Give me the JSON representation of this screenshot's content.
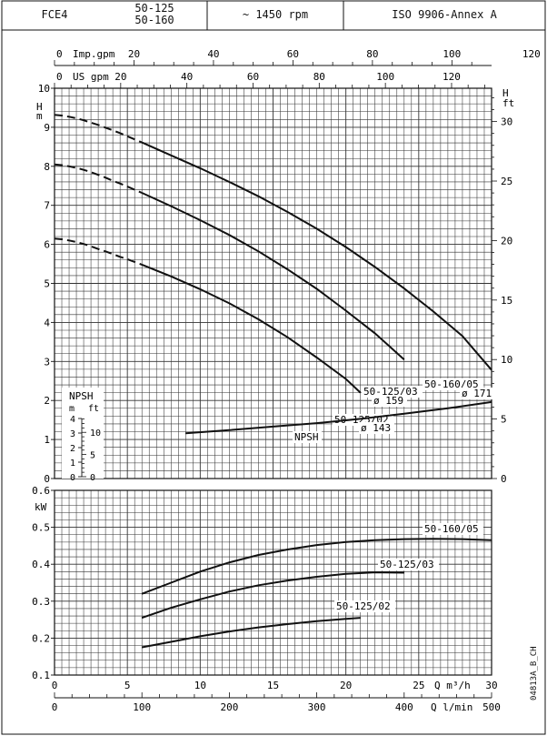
{
  "header": {
    "model": "FCE4",
    "variants": [
      "50-125",
      "50-160"
    ],
    "speed": "~ 1450 rpm",
    "standard": "ISO 9906-Annex A"
  },
  "doc_ref": "04813A_B_CH",
  "chart_data": [
    {
      "type": "line",
      "name": "head",
      "ylabel": "H m",
      "ylabel_right": "H ft",
      "ylim": [
        0,
        10
      ],
      "ylim_ft": [
        0,
        32.8
      ],
      "yticks": [
        0,
        1,
        2,
        3,
        4,
        5,
        6,
        7,
        8,
        9,
        10
      ],
      "yticks_ft": [
        0,
        5,
        10,
        15,
        20,
        25,
        30
      ],
      "xlim_m3h": [
        0,
        30
      ],
      "top_axes": [
        {
          "label": "Imp.gpm",
          "ticks": [
            0,
            20,
            40,
            60,
            80,
            100,
            120
          ],
          "factor": 3.666
        },
        {
          "label": "US gpm",
          "ticks": [
            0,
            20,
            40,
            60,
            80,
            100,
            120
          ],
          "factor": 4.403
        }
      ],
      "series": [
        {
          "name": "50-160/05",
          "diameter": "ø 171",
          "dashed_x": [
            0,
            0.5,
            1,
            1.5,
            2,
            2.5,
            3,
            3.5,
            4,
            4.5,
            5,
            5.5,
            6
          ],
          "dashed_y": [
            9.32,
            9.3,
            9.27,
            9.23,
            9.18,
            9.12,
            9.06,
            8.99,
            8.92,
            8.85,
            8.77,
            8.69,
            8.61
          ],
          "x": [
            6,
            8,
            10,
            12,
            14,
            16,
            18,
            20,
            22,
            24,
            26,
            28,
            30
          ],
          "y": [
            8.61,
            8.28,
            7.95,
            7.6,
            7.23,
            6.83,
            6.4,
            5.93,
            5.42,
            4.87,
            4.28,
            3.65,
            2.78
          ]
        },
        {
          "name": "50-125/03",
          "diameter": "ø 159",
          "dashed_x": [
            0,
            0.5,
            1,
            1.5,
            2,
            2.5,
            3,
            3.5,
            4,
            4.5,
            5,
            5.5,
            6
          ],
          "dashed_y": [
            8.05,
            8.03,
            8.0,
            7.96,
            7.91,
            7.85,
            7.78,
            7.71,
            7.63,
            7.56,
            7.48,
            7.4,
            7.32
          ],
          "x": [
            6,
            8,
            10,
            12,
            14,
            16,
            18,
            20,
            22,
            24
          ],
          "y": [
            7.32,
            6.98,
            6.62,
            6.24,
            5.82,
            5.36,
            4.86,
            4.3,
            3.72,
            3.05
          ]
        },
        {
          "name": "50-125/02",
          "diameter": "ø 143",
          "dashed_x": [
            0,
            0.5,
            1,
            1.5,
            2,
            2.5,
            3,
            3.5,
            4,
            4.5,
            5,
            5.5,
            6
          ],
          "dashed_y": [
            6.15,
            6.13,
            6.1,
            6.06,
            6.01,
            5.95,
            5.88,
            5.82,
            5.75,
            5.68,
            5.62,
            5.55,
            5.48
          ],
          "x": [
            6,
            8,
            10,
            12,
            14,
            16,
            18,
            20,
            21
          ],
          "y": [
            5.48,
            5.18,
            4.85,
            4.49,
            4.08,
            3.62,
            3.1,
            2.55,
            2.2
          ]
        }
      ],
      "npsh": {
        "label": "NPSH",
        "unit_m": "m",
        "unit_ft": "ft",
        "scale_m": [
          0,
          1,
          2,
          3,
          4
        ],
        "scale_ft": [
          0,
          5,
          10
        ],
        "x": [
          9,
          12,
          15,
          18,
          21,
          24,
          27,
          30
        ],
        "y": [
          1.16,
          1.24,
          1.33,
          1.42,
          1.53,
          1.66,
          1.8,
          1.96
        ]
      }
    },
    {
      "type": "line",
      "name": "power",
      "ylabel": "kW",
      "ylim": [
        0.1,
        0.6
      ],
      "yticks": [
        0.1,
        0.2,
        0.3,
        0.4,
        0.5,
        0.6
      ],
      "xlabel": "Q m³/h",
      "xlabel2": "Q l/min",
      "xticks": [
        0,
        5,
        10,
        15,
        20,
        25,
        30
      ],
      "xticks_lmin": [
        0,
        100,
        200,
        300,
        400,
        500
      ],
      "series": [
        {
          "name": "50-160/05",
          "x": [
            6,
            8,
            10,
            12,
            14,
            16,
            18,
            20,
            22,
            24,
            26,
            28,
            30
          ],
          "y": [
            0.32,
            0.35,
            0.38,
            0.405,
            0.425,
            0.44,
            0.452,
            0.46,
            0.465,
            0.468,
            0.469,
            0.468,
            0.465
          ]
        },
        {
          "name": "50-125/03",
          "x": [
            6,
            8,
            10,
            12,
            14,
            16,
            18,
            20,
            22,
            24
          ],
          "y": [
            0.255,
            0.282,
            0.305,
            0.326,
            0.343,
            0.356,
            0.366,
            0.374,
            0.378,
            0.377
          ]
        },
        {
          "name": "50-125/02",
          "x": [
            6,
            8,
            10,
            12,
            14,
            16,
            18,
            20,
            21
          ],
          "y": [
            0.175,
            0.19,
            0.205,
            0.218,
            0.229,
            0.238,
            0.246,
            0.252,
            0.255
          ]
        }
      ]
    }
  ]
}
